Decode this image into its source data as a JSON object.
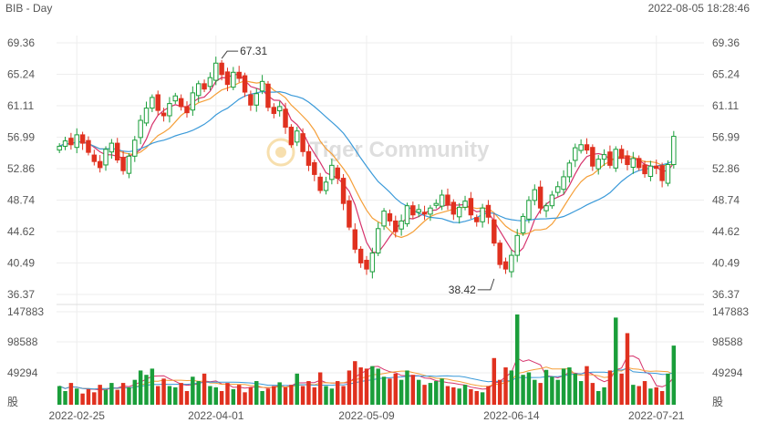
{
  "header": {
    "symbol_period": "BIB - Day",
    "timestamp": "2022-08-05 18:28:46"
  },
  "watermark": "Tiger Community",
  "colors": {
    "up": "#1a9e3a",
    "down": "#e0311f",
    "ma5": "#d6336c",
    "ma10": "#f59f38",
    "ma20": "#3b9ad9",
    "grid": "#eeeeee",
    "axis_text": "#555555"
  },
  "chart_data": [
    {
      "type": "candlestick",
      "price_ticks": [
        "69.36",
        "65.24",
        "61.11",
        "56.99",
        "52.86",
        "48.74",
        "44.62",
        "40.49",
        "36.37"
      ],
      "ylim": [
        36.37,
        69.36
      ],
      "x_tick_labels": [
        {
          "label": "2022-02-25",
          "index": 3
        },
        {
          "label": "2022-04-01",
          "index": 27
        },
        {
          "label": "2022-05-09",
          "index": 53
        },
        {
          "label": "2022-06-14",
          "index": 78
        },
        {
          "label": "2022-07-21",
          "index": 103
        }
      ],
      "annotations": [
        {
          "text": "67.31",
          "index": 28,
          "value": 67.31,
          "kind": "high"
        },
        {
          "text": "38.42",
          "index": 75,
          "value": 38.42,
          "kind": "low"
        }
      ],
      "closes": [
        55.8,
        56.5,
        56.0,
        57.3,
        56.2,
        55.0,
        53.8,
        53.0,
        55.4,
        56.2,
        54.0,
        52.6,
        54.5,
        56.6,
        59.2,
        60.8,
        62.2,
        60.5,
        59.8,
        61.4,
        62.4,
        61.0,
        60.2,
        62.8,
        64.0,
        63.3,
        64.8,
        66.7,
        65.2,
        63.9,
        65.5,
        64.7,
        62.9,
        61.2,
        62.7,
        64.3,
        60.9,
        60.1,
        61.0,
        58.3,
        56.0,
        57.8,
        55.1,
        53.3,
        52.1,
        50.0,
        51.1,
        53.3,
        51.6,
        48.3,
        45.2,
        42.3,
        40.5,
        39.7,
        41.8,
        45.0,
        47.3,
        46.0,
        44.6,
        46.0,
        48.0,
        46.8,
        47.5,
        46.9,
        47.7,
        48.3,
        49.4,
        48.1,
        46.9,
        47.8,
        48.6,
        46.8,
        45.9,
        47.7,
        46.5,
        43.1,
        40.3,
        39.7,
        41.5,
        44.1,
        46.6,
        48.7,
        50.1,
        47.7,
        48.0,
        49.4,
        50.5,
        51.8,
        53.6,
        55.6,
        56.0,
        55.3,
        53.2,
        54.1,
        54.7,
        53.3,
        55.4,
        54.2,
        53.4,
        54.2,
        53.0,
        52.2,
        53.2,
        52.9,
        51.3,
        53.4,
        57.1
      ],
      "volume_ticks": [
        "147883",
        "98588",
        "49294",
        "股"
      ],
      "volume_max": 147883,
      "volumes": [
        30000,
        22000,
        35000,
        26000,
        18000,
        25000,
        20000,
        32000,
        24000,
        35000,
        24000,
        35000,
        28000,
        40000,
        55000,
        48000,
        58000,
        30000,
        42000,
        30000,
        28000,
        35000,
        22000,
        45000,
        38000,
        50000,
        30000,
        28000,
        22000,
        35000,
        25000,
        32000,
        20000,
        28000,
        38000,
        22000,
        26000,
        30000,
        36000,
        28000,
        32000,
        50000,
        30000,
        38000,
        28000,
        52000,
        30000,
        26000,
        38000,
        30000,
        55000,
        70000,
        60000,
        58000,
        62000,
        58000,
        45000,
        42000,
        50000,
        40000,
        55000,
        48000,
        40000,
        32000,
        35000,
        38000,
        42000,
        30000,
        28000,
        26000,
        32000,
        25000,
        22000,
        20000,
        30000,
        75000,
        40000,
        60000,
        55000,
        145000,
        48000,
        52000,
        40000,
        35000,
        56000,
        45000,
        40000,
        58000,
        60000,
        50000,
        38000,
        62000,
        35000,
        22000,
        28000,
        55000,
        140000,
        50000,
        115000,
        32000,
        30000,
        38000,
        26000,
        28000,
        22000,
        50000,
        95000
      ]
    }
  ]
}
